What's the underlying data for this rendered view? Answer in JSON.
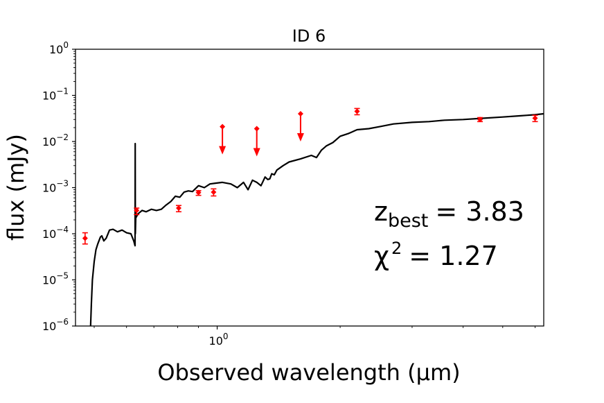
{
  "chart_data": {
    "type": "line",
    "title": "ID 6",
    "xlabel": "Observed wavelength (µm)",
    "ylabel": "flux (mJy)",
    "xscale": "log",
    "yscale": "log",
    "xlim": [
      0.45,
      6.3
    ],
    "ylim": [
      1e-06,
      1
    ],
    "grid": false,
    "legend": "none",
    "x_ticks": [
      {
        "value": 1.0,
        "base": "10",
        "exp": "0"
      }
    ],
    "y_ticks": [
      {
        "value": 1e-06,
        "base": "10",
        "exp": "−6"
      },
      {
        "value": 1e-05,
        "base": "10",
        "exp": "−5"
      },
      {
        "value": 0.0001,
        "base": "10",
        "exp": "−4"
      },
      {
        "value": 0.001,
        "base": "10",
        "exp": "−3"
      },
      {
        "value": 0.01,
        "base": "10",
        "exp": "−2"
      },
      {
        "value": 0.1,
        "base": "10",
        "exp": "−1"
      },
      {
        "value": 1.0,
        "base": "10",
        "exp": "0"
      }
    ],
    "annotations": {
      "z_label": "z",
      "z_sub": "best",
      "z_value": "= 3.83",
      "chi_label": "χ",
      "chi_sup": "2",
      "chi_value": "= 1.27"
    },
    "series": [
      {
        "kind": "model_sed",
        "color": "#000000",
        "x": [
          0.49,
          0.492,
          0.495,
          0.5,
          0.505,
          0.51,
          0.515,
          0.518,
          0.522,
          0.528,
          0.535,
          0.545,
          0.556,
          0.57,
          0.585,
          0.6,
          0.615,
          0.625,
          0.6295,
          0.63,
          0.6305,
          0.632,
          0.64,
          0.655,
          0.67,
          0.69,
          0.71,
          0.73,
          0.75,
          0.77,
          0.79,
          0.81,
          0.83,
          0.85,
          0.87,
          0.9,
          0.93,
          0.96,
          0.99,
          1.03,
          1.08,
          1.12,
          1.16,
          1.19,
          1.22,
          1.25,
          1.28,
          1.31,
          1.33,
          1.345,
          1.36,
          1.38,
          1.4,
          1.45,
          1.5,
          1.6,
          1.7,
          1.75,
          1.8,
          1.85,
          1.92,
          2.0,
          2.1,
          2.2,
          2.35,
          2.5,
          2.7,
          3.0,
          3.3,
          3.6,
          4.0,
          4.5,
          5.0,
          5.5,
          6.0,
          6.3
        ],
        "y": [
          1e-06,
          3e-06,
          1e-05,
          2.5e-05,
          4.5e-05,
          6e-05,
          7.5e-05,
          8.5e-05,
          9e-05,
          7e-05,
          8e-05,
          0.00012,
          0.000125,
          0.00011,
          0.00012,
          0.000105,
          0.0001,
          7e-05,
          5.5e-05,
          0.009,
          0.0001,
          0.00022,
          0.00027,
          0.00032,
          0.0003,
          0.00034,
          0.00032,
          0.00034,
          0.00042,
          0.0005,
          0.00065,
          0.00062,
          0.0008,
          0.00085,
          0.00082,
          0.0011,
          0.001,
          0.0012,
          0.00125,
          0.0013,
          0.0012,
          0.001,
          0.0013,
          0.0009,
          0.00145,
          0.0013,
          0.0011,
          0.0017,
          0.0015,
          0.00155,
          0.002,
          0.0019,
          0.0024,
          0.003,
          0.0036,
          0.0042,
          0.005,
          0.0045,
          0.0065,
          0.008,
          0.0095,
          0.013,
          0.015,
          0.018,
          0.019,
          0.021,
          0.024,
          0.026,
          0.027,
          0.029,
          0.03,
          0.032,
          0.034,
          0.036,
          0.038,
          0.04
        ]
      },
      {
        "kind": "detections",
        "color": "#ff0000",
        "x": [
          0.475,
          0.635,
          0.805,
          0.9,
          0.98,
          2.2,
          4.4,
          6.0
        ],
        "y": [
          8e-05,
          0.00032,
          0.00036,
          0.00078,
          0.0008,
          0.045,
          0.03,
          0.032
        ],
        "yerr_lo": [
          6e-05,
          0.00026,
          0.0003,
          0.00068,
          0.00066,
          0.038,
          0.027,
          0.027
        ],
        "yerr_hi": [
          0.000105,
          0.00036,
          0.00041,
          0.00086,
          0.00094,
          0.052,
          0.033,
          0.037
        ]
      },
      {
        "kind": "upper_limits",
        "color": "#ff0000",
        "x": [
          1.03,
          1.25,
          1.6
        ],
        "y": [
          0.021,
          0.019,
          0.04
        ]
      }
    ]
  }
}
